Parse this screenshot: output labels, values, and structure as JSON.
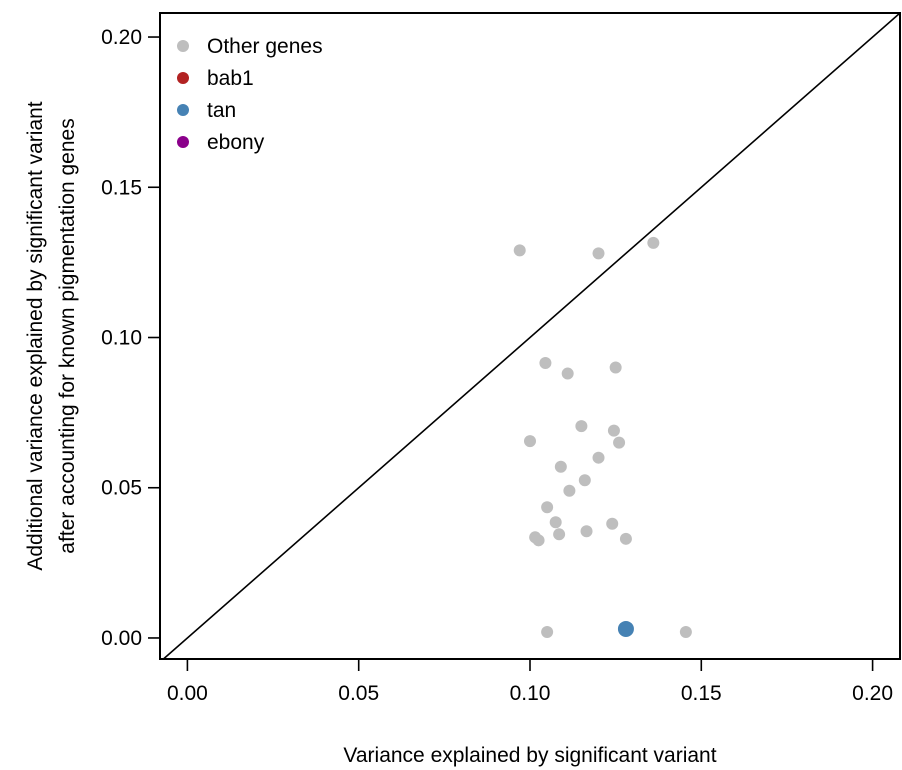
{
  "chart_data": {
    "type": "scatter",
    "title": "",
    "xlabel": "Variance explained by significant variant",
    "ylabel_lines": [
      "Additional variance explained by significant variant",
      "after accounting for known pigmentation genes"
    ],
    "xlim": [
      -0.008,
      0.208
    ],
    "ylim": [
      -0.007,
      0.208
    ],
    "x_ticks": [
      {
        "value": 0.0,
        "label": "0.00"
      },
      {
        "value": 0.05,
        "label": "0.05"
      },
      {
        "value": 0.1,
        "label": "0.10"
      },
      {
        "value": 0.15,
        "label": "0.15"
      },
      {
        "value": 0.2,
        "label": "0.20"
      }
    ],
    "y_ticks": [
      {
        "value": 0.0,
        "label": "0.00"
      },
      {
        "value": 0.05,
        "label": "0.05"
      },
      {
        "value": 0.1,
        "label": "0.10"
      },
      {
        "value": 0.15,
        "label": "0.15"
      },
      {
        "value": 0.2,
        "label": "0.20"
      }
    ],
    "reference_line": "y = x",
    "grid": false,
    "legend_position": "top-left",
    "series": [
      {
        "name": "Other genes",
        "color": "#bebebe",
        "size": "small",
        "points": [
          [
            0.097,
            0.129
          ],
          [
            0.12,
            0.128
          ],
          [
            0.136,
            0.1315
          ],
          [
            0.1045,
            0.0915
          ],
          [
            0.111,
            0.088
          ],
          [
            0.125,
            0.09
          ],
          [
            0.1,
            0.0655
          ],
          [
            0.115,
            0.0705
          ],
          [
            0.1245,
            0.069
          ],
          [
            0.126,
            0.065
          ],
          [
            0.109,
            0.057
          ],
          [
            0.12,
            0.06
          ],
          [
            0.116,
            0.0525
          ],
          [
            0.1115,
            0.049
          ],
          [
            0.105,
            0.0435
          ],
          [
            0.1075,
            0.0385
          ],
          [
            0.124,
            0.038
          ],
          [
            0.1165,
            0.0355
          ],
          [
            0.1015,
            0.0335
          ],
          [
            0.1025,
            0.0325
          ],
          [
            0.1085,
            0.0345
          ],
          [
            0.128,
            0.033
          ],
          [
            0.105,
            0.002
          ],
          [
            0.1455,
            0.002
          ]
        ]
      },
      {
        "name": "bab1",
        "color": "#b22222",
        "size": "large",
        "points": []
      },
      {
        "name": "tan",
        "color": "#4682b4",
        "size": "large",
        "points": [
          [
            0.128,
            0.003
          ]
        ]
      },
      {
        "name": "ebony",
        "color": "#8b008b",
        "size": "large",
        "points": []
      }
    ]
  }
}
